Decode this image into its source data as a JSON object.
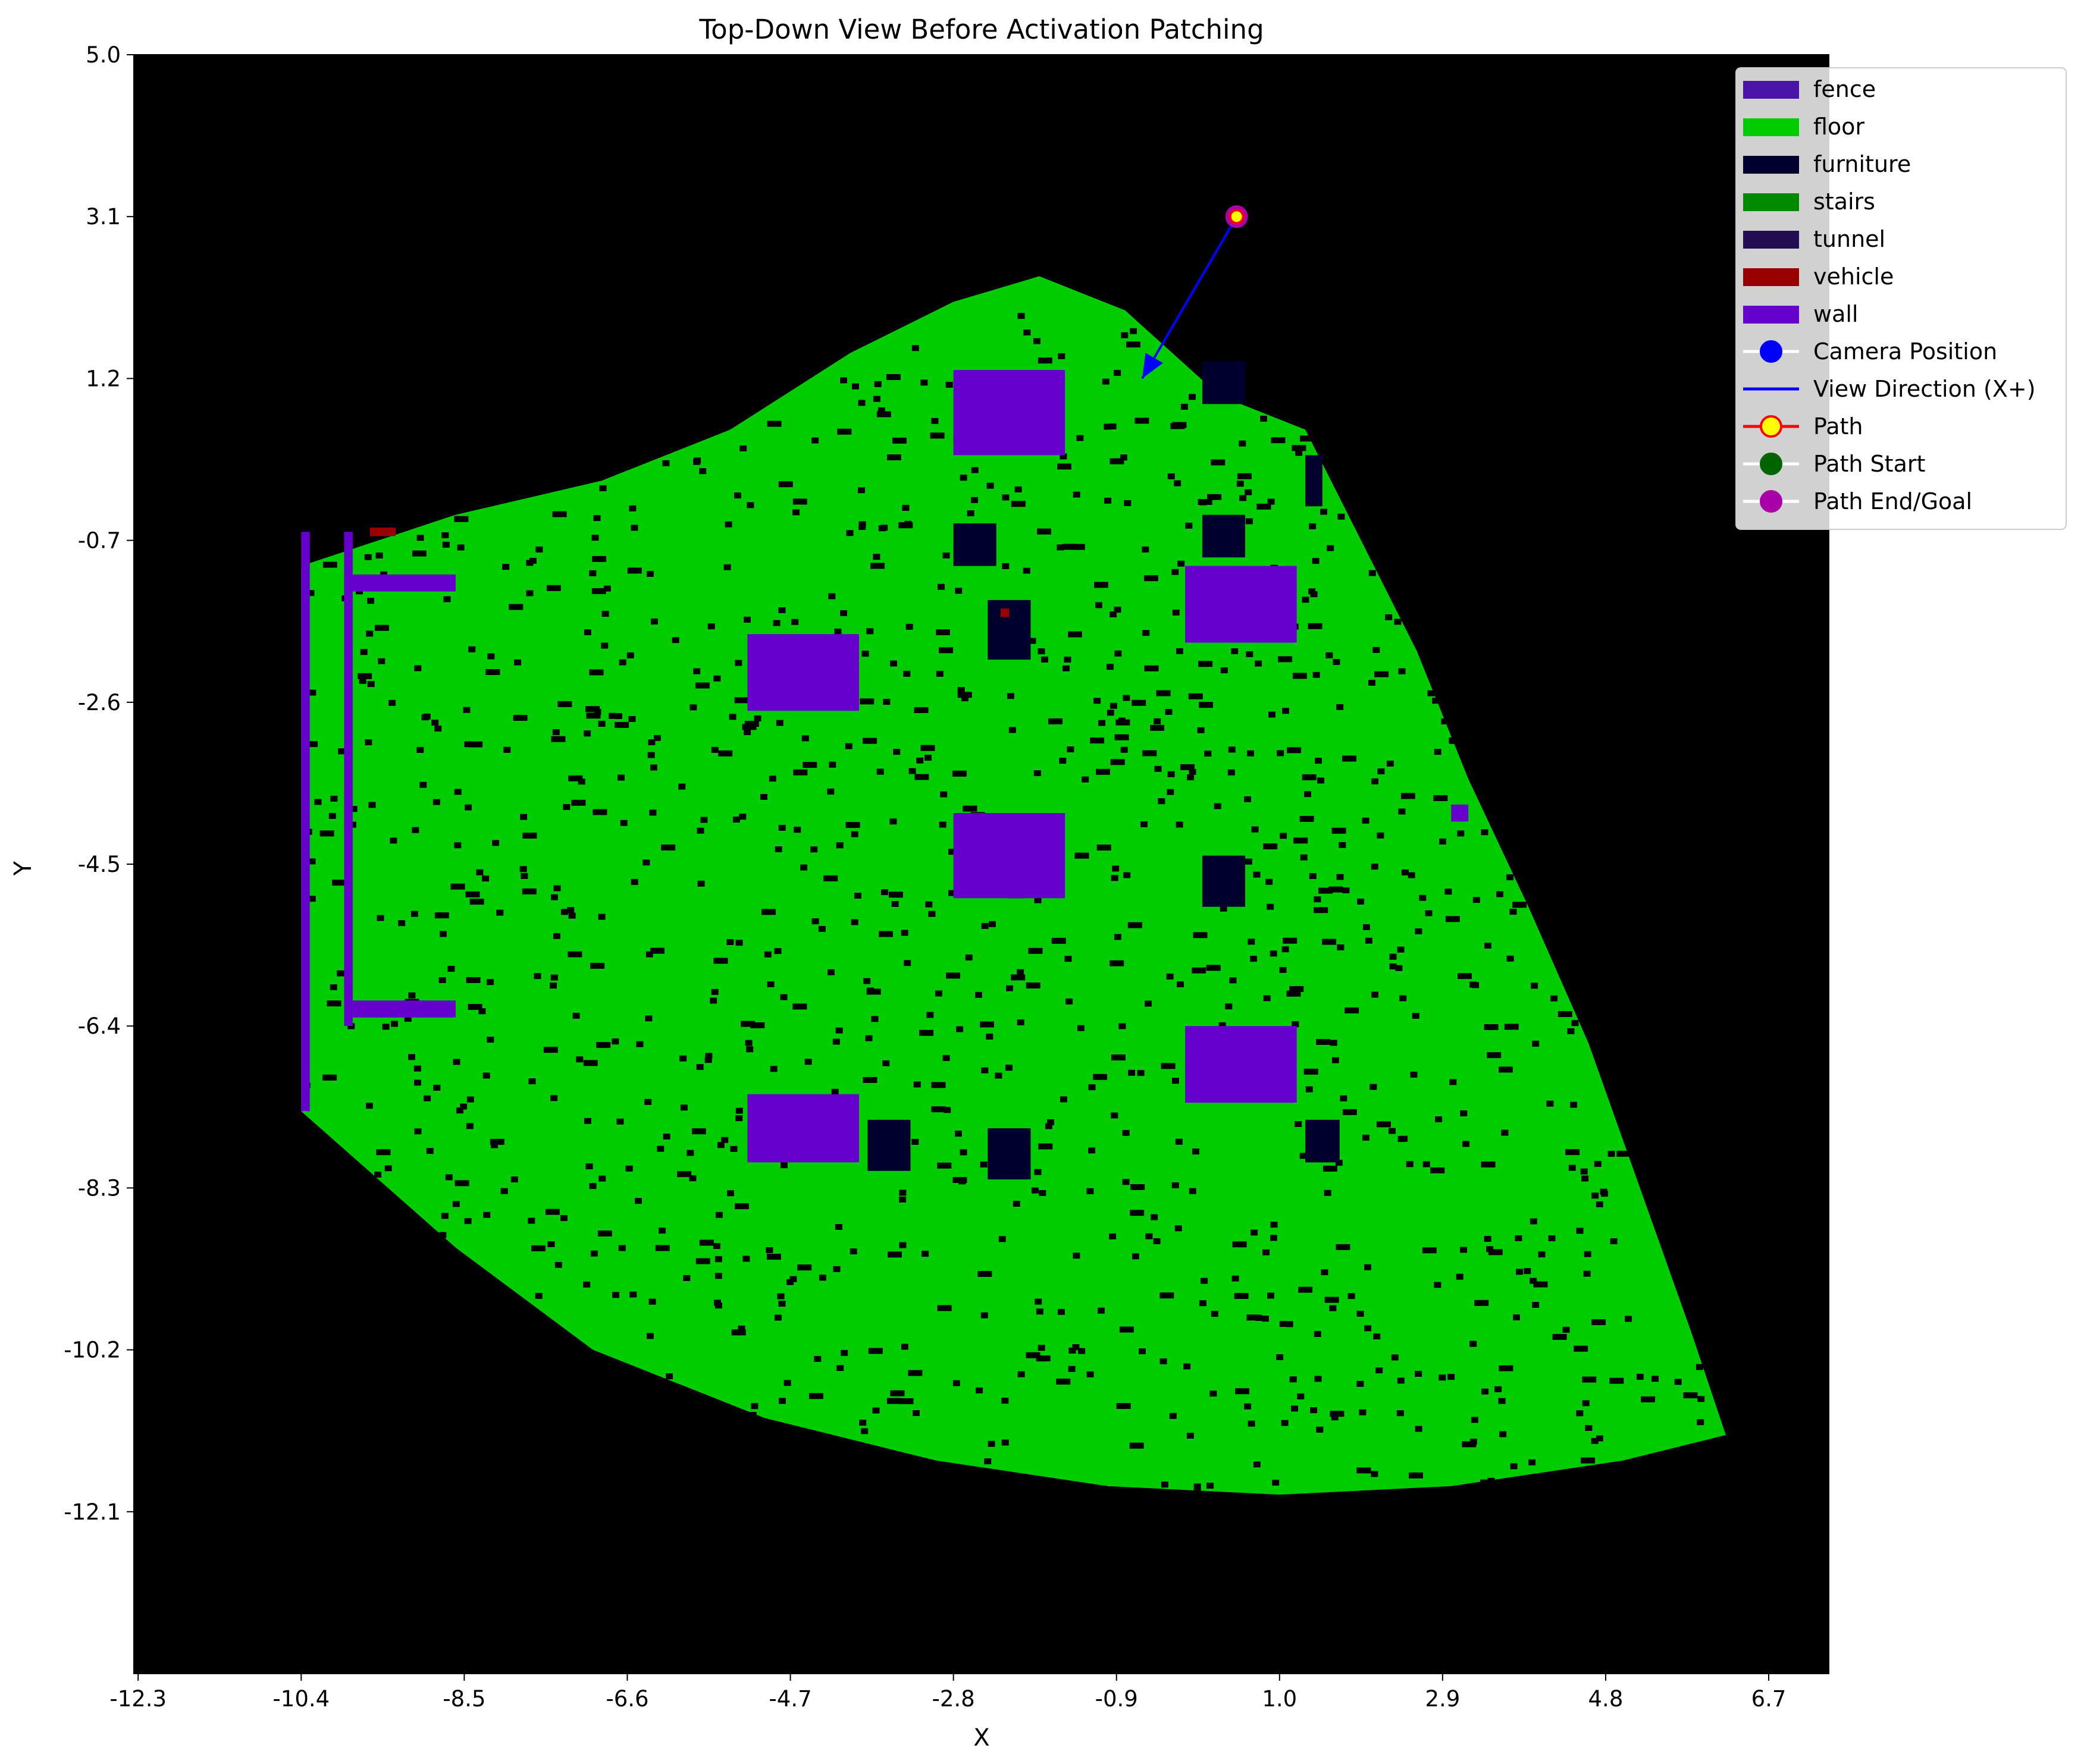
{
  "chart_data": {
    "type": "heatmap",
    "title": "Top-Down View Before Activation Patching",
    "xlabel": "X",
    "ylabel": "Y",
    "xlim": [
      -12.35,
      7.4
    ],
    "ylim": [
      -14.0,
      5.0
    ],
    "xticks": [
      "-12.3",
      "-10.4",
      "-8.5",
      "-6.6",
      "-4.7",
      "-2.8",
      "-0.9",
      "1.0",
      "2.9",
      "4.8",
      "6.7"
    ],
    "yticks": [
      "5.0",
      "3.1",
      "1.2",
      "-0.7",
      "-2.6",
      "-4.5",
      "-6.4",
      "-8.3",
      "-10.2",
      "-12.1"
    ],
    "background_color": "#000000",
    "classes": [
      {
        "name": "fence",
        "color": "#4a14a8"
      },
      {
        "name": "floor",
        "color": "#00cc00"
      },
      {
        "name": "furniture",
        "color": "#00002e"
      },
      {
        "name": "stairs",
        "color": "#008a00"
      },
      {
        "name": "tunnel",
        "color": "#220c52"
      },
      {
        "name": "vehicle",
        "color": "#990000"
      },
      {
        "name": "wall",
        "color": "#6600cc"
      }
    ],
    "floor_region": [
      [
        -10.4,
        -1.0
      ],
      [
        -8.6,
        -0.4
      ],
      [
        -6.9,
        0.0
      ],
      [
        -5.4,
        0.6
      ],
      [
        -4.0,
        1.5
      ],
      [
        -2.8,
        2.1
      ],
      [
        -1.8,
        2.4
      ],
      [
        -0.8,
        2.0
      ],
      [
        0.3,
        1.0
      ],
      [
        1.3,
        0.6
      ],
      [
        1.9,
        -0.6
      ],
      [
        2.6,
        -2.0
      ],
      [
        3.2,
        -3.5
      ],
      [
        3.9,
        -5.0
      ],
      [
        4.6,
        -6.6
      ],
      [
        5.2,
        -8.3
      ],
      [
        5.8,
        -10.0
      ],
      [
        6.2,
        -11.2
      ],
      [
        5.0,
        -11.5
      ],
      [
        3.0,
        -11.8
      ],
      [
        1.0,
        -11.9
      ],
      [
        -1.0,
        -11.8
      ],
      [
        -3.0,
        -11.5
      ],
      [
        -5.0,
        -11.0
      ],
      [
        -7.0,
        -10.2
      ],
      [
        -8.6,
        -9.0
      ],
      [
        -10.4,
        -7.4
      ]
    ],
    "walls": [
      {
        "x": [
          -2.8,
          -1.5
        ],
        "y": [
          0.3,
          1.3
        ]
      },
      {
        "x": [
          -0.1,
          1.2
        ],
        "y": [
          -1.9,
          -1.0
        ]
      },
      {
        "x": [
          -5.2,
          -3.9
        ],
        "y": [
          -2.7,
          -1.8
        ]
      },
      {
        "x": [
          -2.8,
          -1.5
        ],
        "y": [
          -4.9,
          -3.9
        ]
      },
      {
        "x": [
          -0.1,
          1.2
        ],
        "y": [
          -7.3,
          -6.4
        ]
      },
      {
        "x": [
          -5.2,
          -3.9
        ],
        "y": [
          -8.0,
          -7.2
        ]
      },
      {
        "x": [
          -10.4,
          -10.3
        ],
        "y": [
          -7.4,
          -0.6
        ]
      },
      {
        "x": [
          -9.9,
          -9.8
        ],
        "y": [
          -6.4,
          -0.6
        ]
      },
      {
        "x": [
          -9.9,
          -8.6
        ],
        "y": [
          -1.3,
          -1.1
        ]
      },
      {
        "x": [
          -9.8,
          -8.6
        ],
        "y": [
          -6.3,
          -6.1
        ]
      },
      {
        "x": [
          3.0,
          3.2
        ],
        "y": [
          -4.0,
          -3.8
        ]
      }
    ],
    "furniture": [
      {
        "x": [
          0.1,
          0.6
        ],
        "y": [
          0.9,
          1.4
        ]
      },
      {
        "x": [
          0.1,
          0.6
        ],
        "y": [
          -0.9,
          -0.4
        ]
      },
      {
        "x": [
          -2.8,
          -2.3
        ],
        "y": [
          -1.0,
          -0.5
        ]
      },
      {
        "x": [
          -2.4,
          -1.9
        ],
        "y": [
          -2.1,
          -1.4
        ]
      },
      {
        "x": [
          0.1,
          0.6
        ],
        "y": [
          -5.0,
          -4.4
        ]
      },
      {
        "x": [
          1.3,
          1.7
        ],
        "y": [
          -8.0,
          -7.5
        ]
      },
      {
        "x": [
          -3.8,
          -3.3
        ],
        "y": [
          -8.1,
          -7.5
        ]
      },
      {
        "x": [
          -2.4,
          -1.9
        ],
        "y": [
          -8.2,
          -7.6
        ]
      },
      {
        "x": [
          1.3,
          1.5
        ],
        "y": [
          -0.3,
          0.3
        ]
      }
    ],
    "vehicle": [
      {
        "x": [
          -9.6,
          -9.3
        ],
        "y": [
          -0.65,
          -0.55
        ]
      },
      {
        "x": [
          -2.25,
          -2.15
        ],
        "y": [
          -1.6,
          -1.5
        ]
      }
    ],
    "camera_position": [
      0.5,
      3.1
    ],
    "view_direction_end": [
      -0.6,
      1.2
    ],
    "path_end_goal": [
      0.5,
      3.1
    ]
  },
  "legend": {
    "placement": "top-right",
    "items": [
      {
        "label": "fence",
        "kind": "patch",
        "color": "#4a14a8"
      },
      {
        "label": "floor",
        "kind": "patch",
        "color": "#00cc00"
      },
      {
        "label": "furniture",
        "kind": "patch",
        "color": "#00002e"
      },
      {
        "label": "stairs",
        "kind": "patch",
        "color": "#008a00"
      },
      {
        "label": "tunnel",
        "kind": "patch",
        "color": "#220c52"
      },
      {
        "label": "vehicle",
        "kind": "patch",
        "color": "#990000"
      },
      {
        "label": "wall",
        "kind": "patch",
        "color": "#6600cc"
      },
      {
        "label": "Camera Position",
        "kind": "dot",
        "color": "#0000ff",
        "edge": "#0000ff",
        "line": "#ffffff"
      },
      {
        "label": "View Direction (X+)",
        "kind": "line",
        "color": "#0000ff"
      },
      {
        "label": "Path",
        "kind": "dot",
        "color": "#ffff00",
        "edge": "#ff0000",
        "line": "#ff0000"
      },
      {
        "label": "Path Start",
        "kind": "dot",
        "color": "#006400",
        "edge": "#006400",
        "line": "#ffffff"
      },
      {
        "label": "Path End/Goal",
        "kind": "dot",
        "color": "#aa00aa",
        "edge": "#aa00aa",
        "line": "#ffffff"
      }
    ]
  }
}
